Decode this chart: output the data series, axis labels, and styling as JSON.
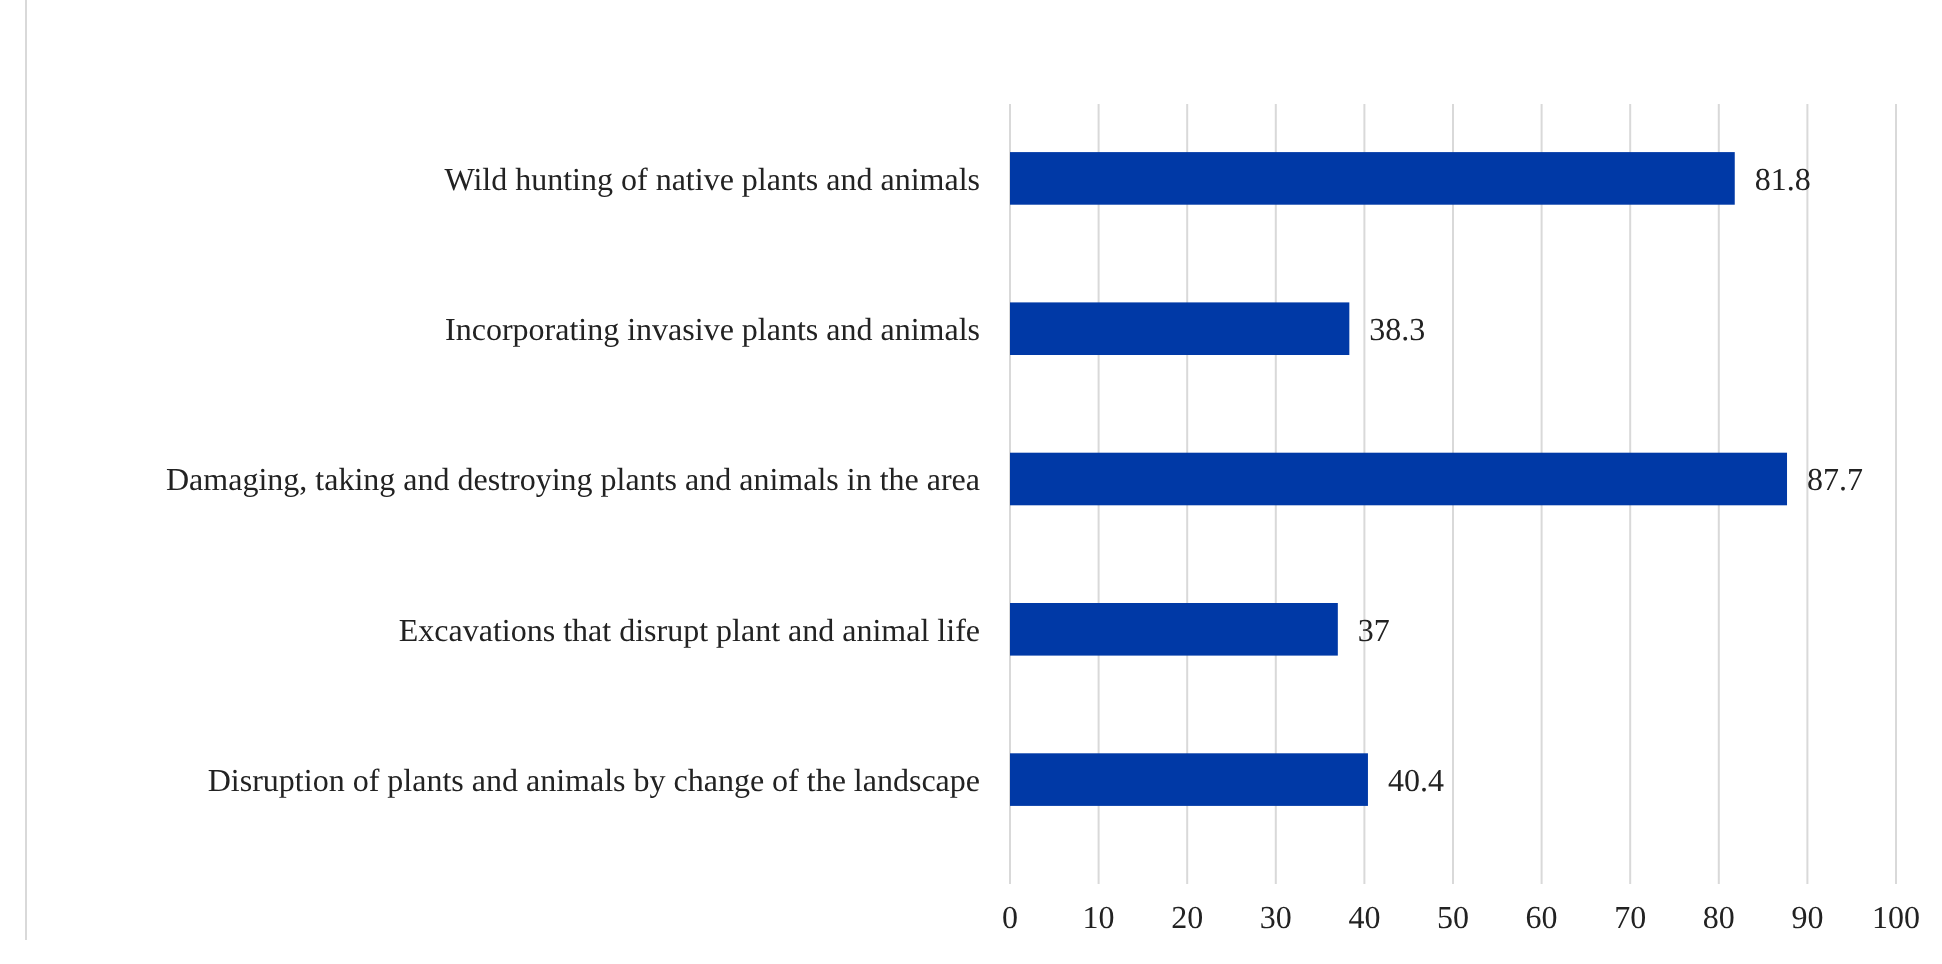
{
  "chart_data": {
    "type": "bar",
    "orientation": "horizontal",
    "categories": [
      "Wild hunting of native plants and animals",
      "Incorporating invasive plants and animals",
      "Damaging, taking and destroying plants and animals in the area",
      "Excavations that disrupt plant and animal life",
      "Disruption of plants and animals by change of the landscape"
    ],
    "values": [
      81.8,
      38.3,
      87.7,
      37,
      40.4
    ],
    "color": "#0039a6",
    "xlim": [
      0,
      100
    ],
    "xticks": [
      0,
      10,
      20,
      30,
      40,
      50,
      60,
      70,
      80,
      90,
      100
    ],
    "grid": "x",
    "data_labels": true
  }
}
